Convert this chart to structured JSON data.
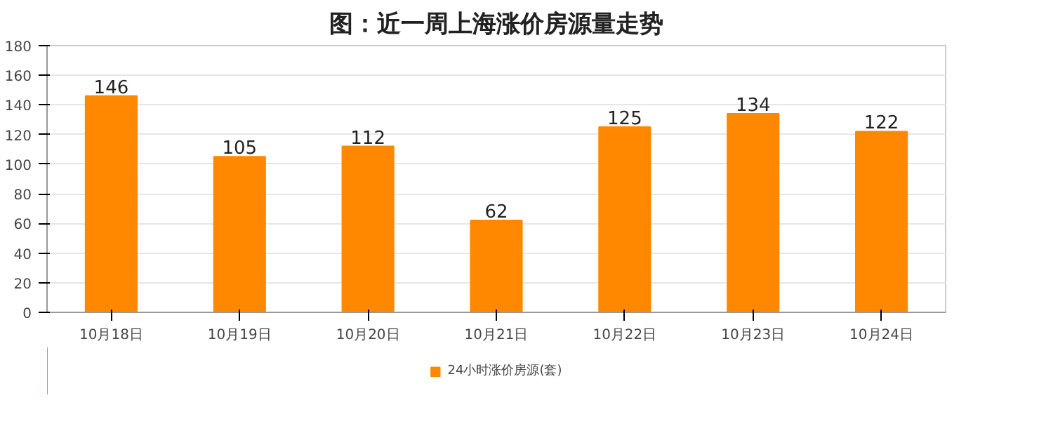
{
  "chart_data": {
    "type": "bar",
    "title": "图：近一周上海涨价房源量走势",
    "categories": [
      "10月18日",
      "10月19日",
      "10月20日",
      "10月21日",
      "10月22日",
      "10月23日",
      "10月24日"
    ],
    "series": [
      {
        "name": "24小时涨价房源(套)",
        "color": "#ff8800",
        "values": [
          146,
          105,
          112,
          62,
          125,
          134,
          122
        ]
      }
    ],
    "ylim": [
      0,
      180
    ],
    "yticks": [
      0,
      20,
      40,
      60,
      80,
      100,
      120,
      140,
      160,
      180
    ],
    "grid": "y",
    "legend": "bottom",
    "data_labels": true
  }
}
